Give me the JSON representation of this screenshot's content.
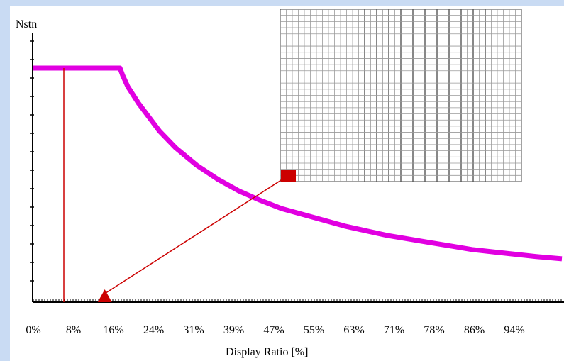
{
  "chart_data": {
    "type": "line",
    "ylabel": "Nstn",
    "xlabel": "Display Ratio [%]",
    "x_tick_labels": [
      "0%",
      "8%",
      "16%",
      "24%",
      "31%",
      "39%",
      "47%",
      "55%",
      "63%",
      "71%",
      "78%",
      "86%",
      "94%"
    ],
    "xlim": [
      0,
      100
    ],
    "ylim": [
      0,
      100
    ],
    "series": [
      {
        "color": "#e100e1",
        "x": [
          0,
          16.5,
          17,
          18,
          20,
          22,
          24,
          27,
          31,
          35,
          39,
          43,
          47,
          51,
          55,
          59,
          63,
          67,
          71,
          75,
          79,
          83,
          87,
          91,
          95,
          100
        ],
        "y": [
          100,
          100,
          97,
          92,
          85,
          79,
          73,
          66,
          58.5,
          52.5,
          47.5,
          43.5,
          40,
          37.5,
          35,
          32.5,
          30.5,
          28.5,
          27,
          25.5,
          24,
          22.5,
          21.5,
          20.5,
          19.5,
          18.5
        ]
      }
    ],
    "marker_point": {
      "x": 8,
      "y": 0
    }
  },
  "colors": {
    "curve": "#e100e1",
    "annotation": "#cc0000",
    "border": "#c9dbf3"
  },
  "inset": {
    "columns": 40,
    "rows": 28
  }
}
